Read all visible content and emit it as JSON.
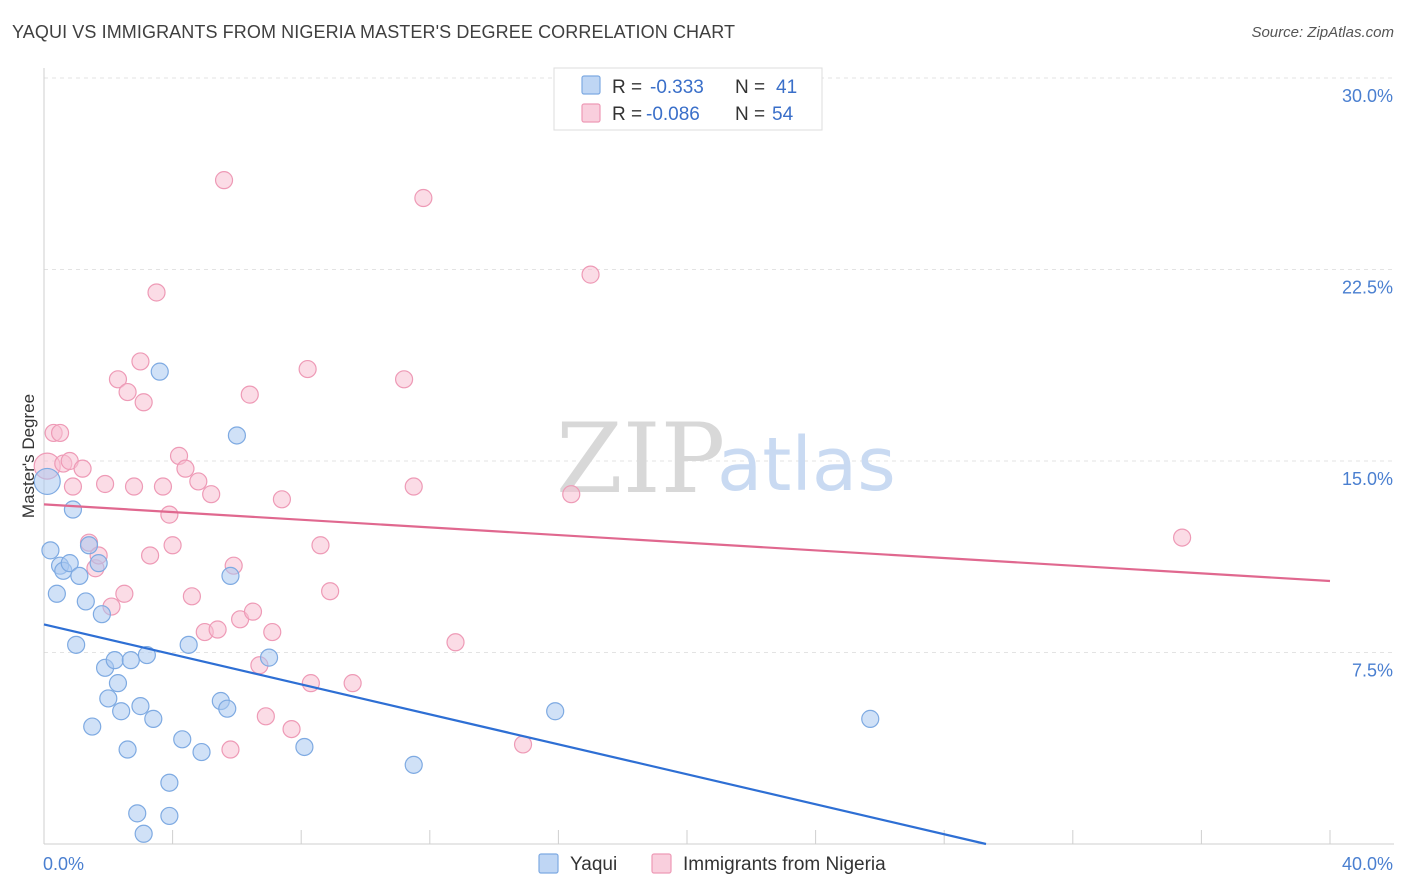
{
  "header": {
    "title": "YAQUI VS IMMIGRANTS FROM NIGERIA MASTER'S DEGREE CORRELATION CHART",
    "source": "Source: ZipAtlas.com"
  },
  "watermark": {
    "zip": "ZIP",
    "atlas": "atlas"
  },
  "colors": {
    "blue_fill": "#a9c8f0",
    "blue_stroke": "#7eaae2",
    "blue_line": "#2e6fd4",
    "pink_fill": "#f7bfd1",
    "pink_stroke": "#ee9ab6",
    "pink_line": "#e0688f",
    "grid": "#e3e3e3",
    "tick_text": "#4a7fd0"
  },
  "legend_top": {
    "rows": [
      {
        "r_label": "R =",
        "r_value": "-0.333",
        "n_label": "N =",
        "n_value": "41",
        "series": "blue"
      },
      {
        "r_label": "R =",
        "r_value": "-0.086",
        "n_label": "N =",
        "n_value": "54",
        "series": "pink"
      }
    ]
  },
  "legend_bottom": {
    "items": [
      {
        "label": "Yaqui",
        "series": "blue"
      },
      {
        "label": "Immigrants from Nigeria",
        "series": "pink"
      }
    ]
  },
  "chart_data": {
    "type": "scatter",
    "title": "YAQUI VS IMMIGRANTS FROM NIGERIA MASTER'S DEGREE CORRELATION CHART",
    "xlabel": "",
    "ylabel": "Master's Degree",
    "xlim": [
      0,
      40
    ],
    "ylim": [
      0,
      30
    ],
    "x_tick_labels": {
      "min": "0.0%",
      "max": "40.0%"
    },
    "y_ticks": [
      {
        "value": 7.5,
        "label": "7.5%"
      },
      {
        "value": 15,
        "label": "15.0%"
      },
      {
        "value": 22.5,
        "label": "22.5%"
      },
      {
        "value": 30,
        "label": "30.0%"
      }
    ],
    "grid": true,
    "series": [
      {
        "name": "Yaqui",
        "color": "blue",
        "R": -0.333,
        "N": 41,
        "trend": {
          "x0": 0,
          "y0": 8.6,
          "x1": 29.3,
          "y1": 0
        },
        "points": [
          [
            0.1,
            14.2
          ],
          [
            0.2,
            11.5
          ],
          [
            0.4,
            9.8
          ],
          [
            0.5,
            10.9
          ],
          [
            0.6,
            10.7
          ],
          [
            0.8,
            11.0
          ],
          [
            0.9,
            13.1
          ],
          [
            1.0,
            7.8
          ],
          [
            1.1,
            10.5
          ],
          [
            1.3,
            9.5
          ],
          [
            1.4,
            11.7
          ],
          [
            1.5,
            4.6
          ],
          [
            1.7,
            11.0
          ],
          [
            1.8,
            9.0
          ],
          [
            1.9,
            6.9
          ],
          [
            2.0,
            5.7
          ],
          [
            2.2,
            7.2
          ],
          [
            2.3,
            6.3
          ],
          [
            2.4,
            5.2
          ],
          [
            2.6,
            3.7
          ],
          [
            2.7,
            7.2
          ],
          [
            2.9,
            1.2
          ],
          [
            3.0,
            5.4
          ],
          [
            3.1,
            0.4
          ],
          [
            3.2,
            7.4
          ],
          [
            3.4,
            4.9
          ],
          [
            3.6,
            18.5
          ],
          [
            3.9,
            1.1
          ],
          [
            3.9,
            2.4
          ],
          [
            4.3,
            4.1
          ],
          [
            4.5,
            7.8
          ],
          [
            4.9,
            3.6
          ],
          [
            5.5,
            5.6
          ],
          [
            5.7,
            5.3
          ],
          [
            5.8,
            10.5
          ],
          [
            6.0,
            16.0
          ],
          [
            7.0,
            7.3
          ],
          [
            8.1,
            3.8
          ],
          [
            11.5,
            3.1
          ],
          [
            15.9,
            5.2
          ],
          [
            25.7,
            4.9
          ]
        ]
      },
      {
        "name": "Immigrants from Nigeria",
        "color": "pink",
        "R": -0.086,
        "N": 54,
        "trend": {
          "x0": 0,
          "y0": 13.3,
          "x1": 40,
          "y1": 10.3
        },
        "points": [
          [
            0.1,
            14.8
          ],
          [
            0.3,
            16.1
          ],
          [
            0.5,
            16.1
          ],
          [
            0.6,
            14.9
          ],
          [
            0.8,
            15.0
          ],
          [
            0.9,
            14.0
          ],
          [
            1.2,
            14.7
          ],
          [
            1.4,
            11.8
          ],
          [
            1.6,
            10.8
          ],
          [
            1.7,
            11.3
          ],
          [
            1.9,
            14.1
          ],
          [
            2.1,
            9.3
          ],
          [
            2.3,
            18.2
          ],
          [
            2.5,
            9.8
          ],
          [
            2.6,
            17.7
          ],
          [
            2.8,
            14.0
          ],
          [
            3.0,
            18.9
          ],
          [
            3.1,
            17.3
          ],
          [
            3.3,
            11.3
          ],
          [
            3.5,
            21.6
          ],
          [
            3.7,
            14.0
          ],
          [
            3.9,
            12.9
          ],
          [
            4.0,
            11.7
          ],
          [
            4.2,
            15.2
          ],
          [
            4.4,
            14.7
          ],
          [
            4.6,
            9.7
          ],
          [
            4.8,
            14.2
          ],
          [
            5.0,
            8.3
          ],
          [
            5.2,
            13.7
          ],
          [
            5.4,
            8.4
          ],
          [
            5.6,
            26.0
          ],
          [
            5.8,
            3.7
          ],
          [
            5.9,
            10.9
          ],
          [
            6.1,
            8.8
          ],
          [
            6.4,
            17.6
          ],
          [
            6.5,
            9.1
          ],
          [
            6.7,
            7.0
          ],
          [
            6.9,
            5.0
          ],
          [
            7.1,
            8.3
          ],
          [
            7.4,
            13.5
          ],
          [
            7.7,
            4.5
          ],
          [
            8.2,
            18.6
          ],
          [
            8.3,
            6.3
          ],
          [
            8.6,
            11.7
          ],
          [
            8.9,
            9.9
          ],
          [
            9.6,
            6.3
          ],
          [
            11.2,
            18.2
          ],
          [
            11.5,
            14.0
          ],
          [
            11.8,
            25.3
          ],
          [
            12.8,
            7.9
          ],
          [
            14.9,
            3.9
          ],
          [
            16.4,
            13.7
          ],
          [
            17.0,
            22.3
          ],
          [
            35.4,
            12.0
          ]
        ]
      }
    ]
  }
}
